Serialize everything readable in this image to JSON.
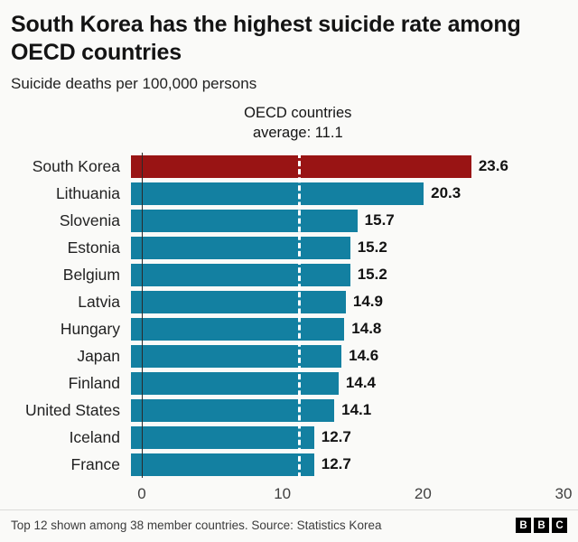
{
  "header": {
    "title": "South Korea has the highest suicide rate among OECD countries",
    "subtitle": "Suicide deaths per 100,000 persons"
  },
  "annotation": {
    "line1": "OECD countries",
    "line2": "average: 11.1"
  },
  "chart_data": {
    "type": "bar",
    "orientation": "horizontal",
    "title": "South Korea has the highest suicide rate among OECD countries",
    "subtitle": "Suicide deaths per 100,000 persons",
    "categories": [
      "South Korea",
      "Lithuania",
      "Slovenia",
      "Estonia",
      "Belgium",
      "Latvia",
      "Hungary",
      "Japan",
      "Finland",
      "United States",
      "Iceland",
      "France"
    ],
    "values": [
      23.6,
      20.3,
      15.7,
      15.2,
      15.2,
      14.9,
      14.8,
      14.6,
      14.4,
      14.1,
      12.7,
      12.7
    ],
    "xlabel": "",
    "ylabel": "",
    "xlim": [
      0,
      30
    ],
    "xticks": [
      0,
      10,
      20,
      30
    ],
    "grid": false,
    "legend": "none",
    "average_line": {
      "value": 11.1,
      "label_line1": "OECD countries",
      "label_line2": "average: 11.1"
    },
    "colors": {
      "highlight": "#991414",
      "default": "#1380a1",
      "highlight_index": 0,
      "average_dash": "#ffffff",
      "axis_line": "#2a2a2a"
    }
  },
  "footer": {
    "note": "Top 12 shown among 38 member countries. Source: Statistics Korea",
    "logo_letters": [
      "B",
      "B",
      "C"
    ]
  }
}
